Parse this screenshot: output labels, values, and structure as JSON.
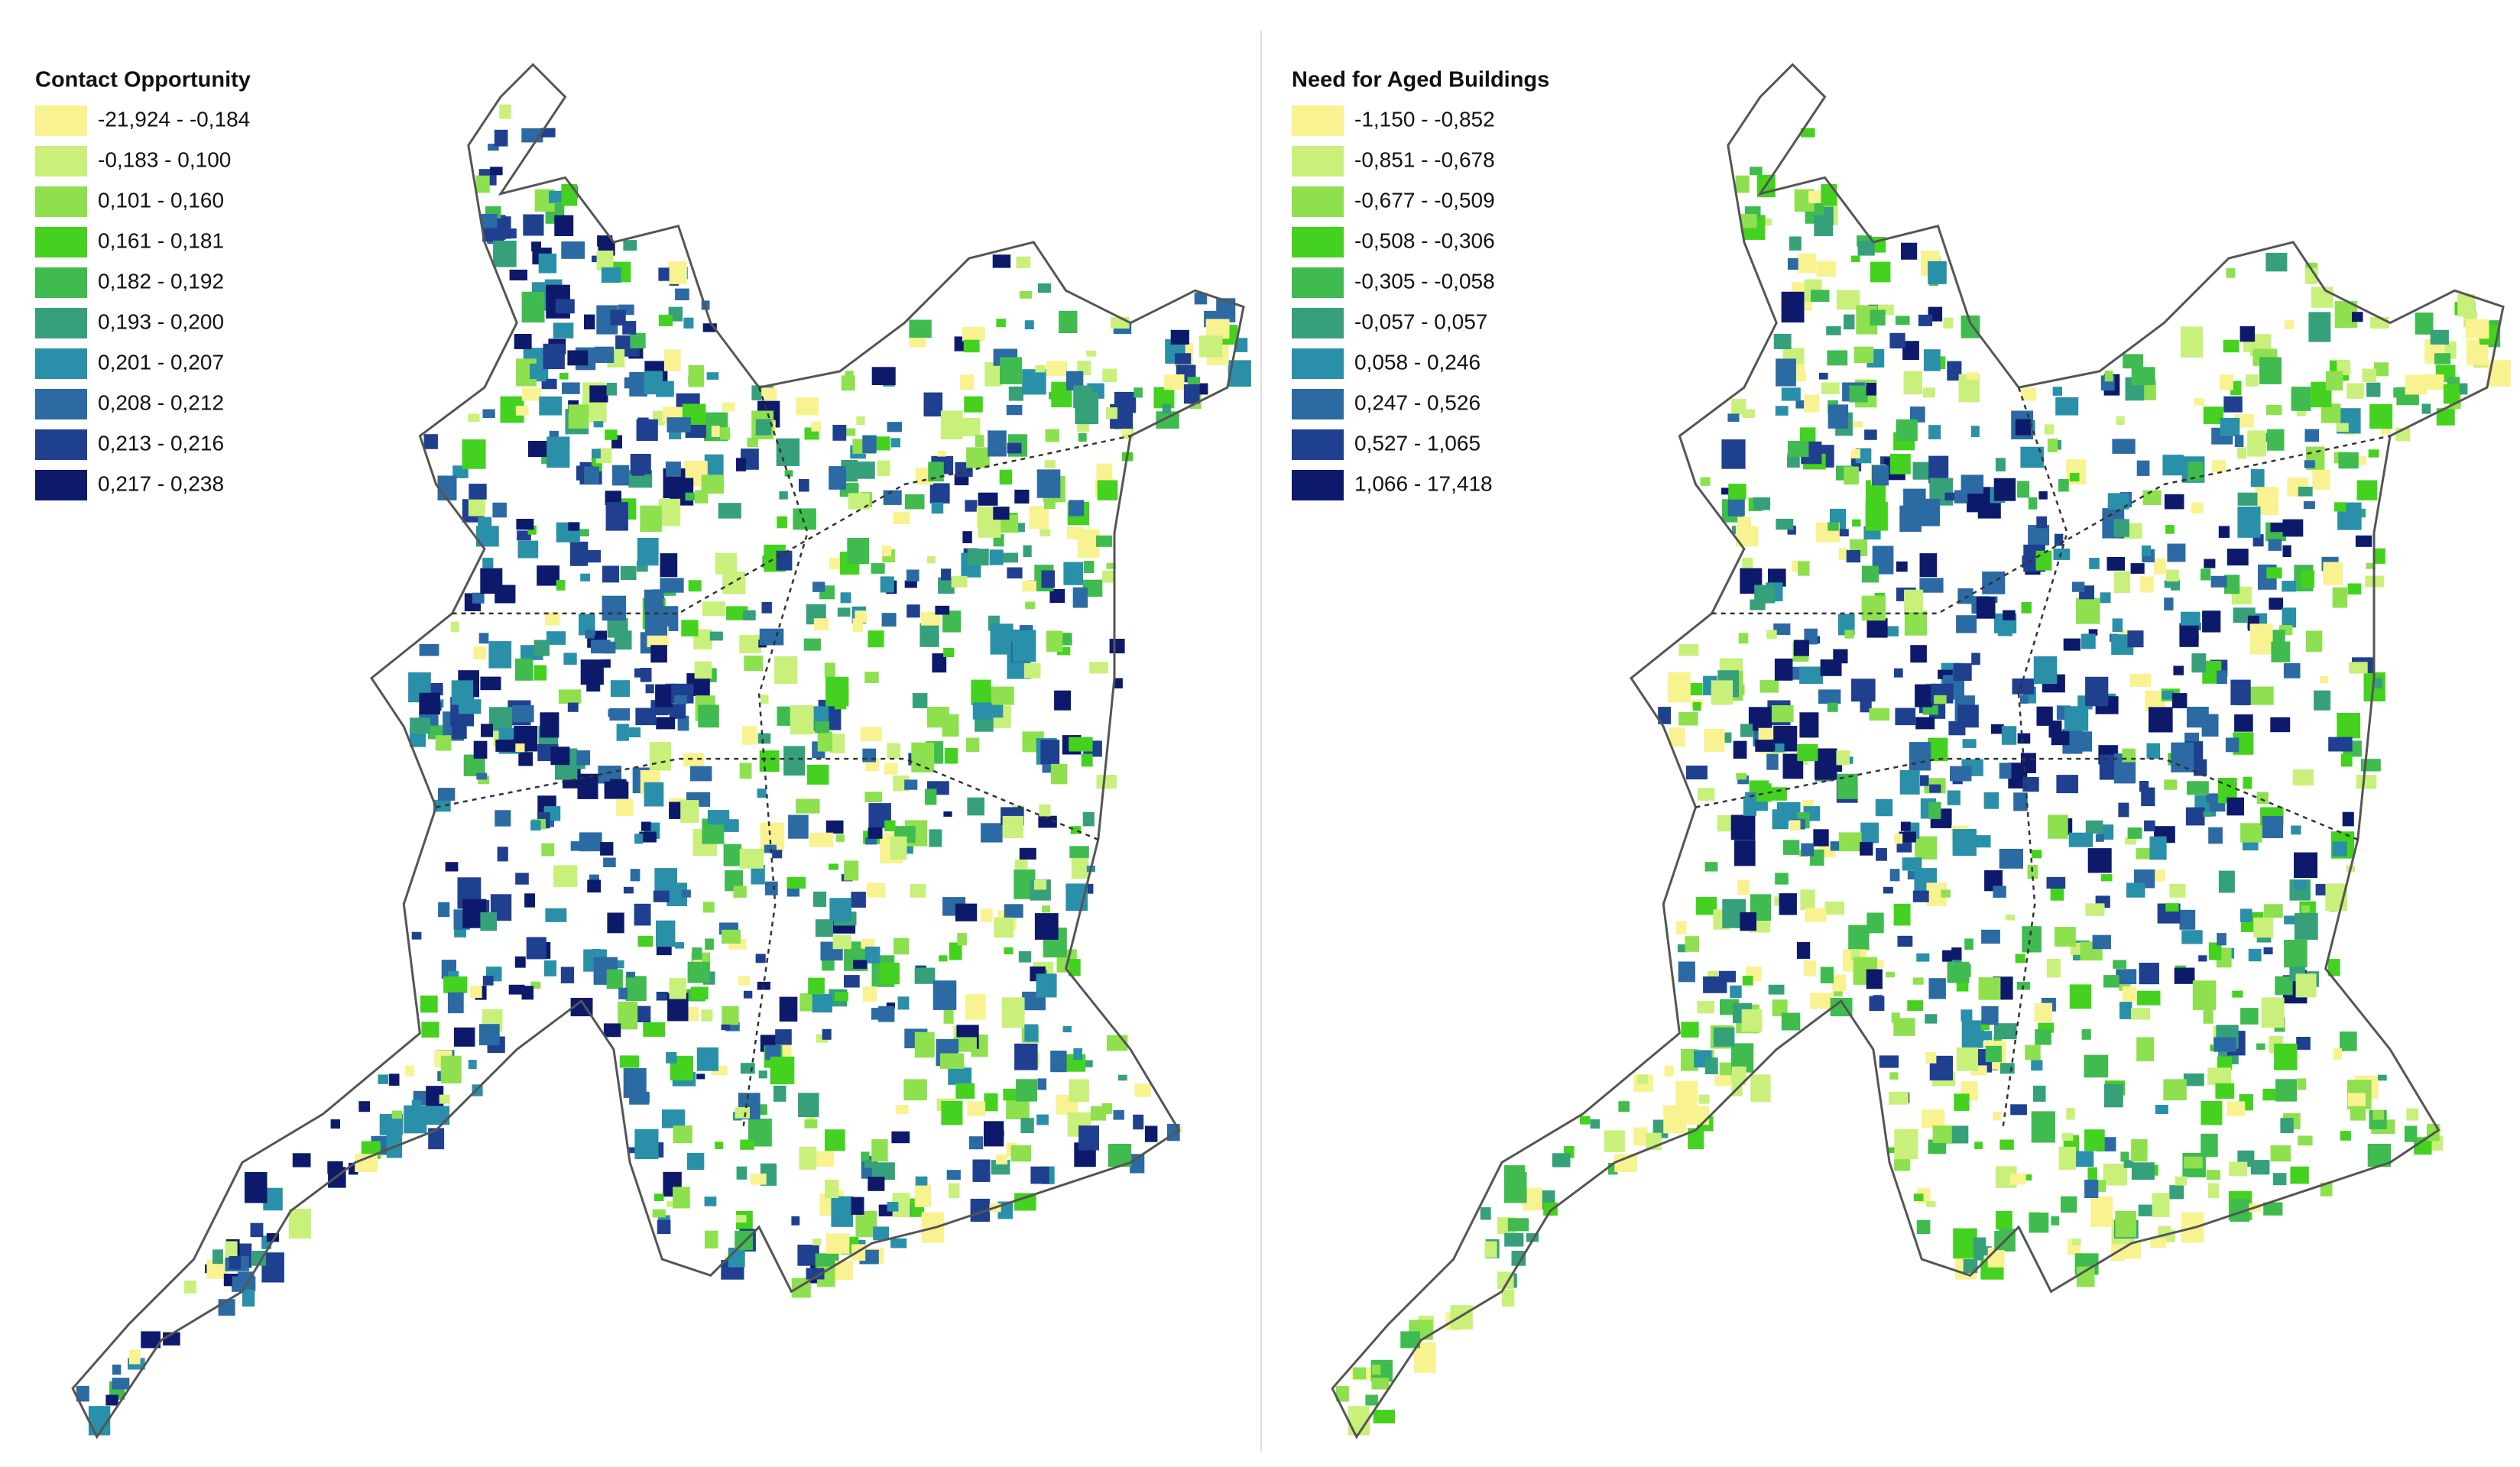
{
  "maps": [
    {
      "legend": {
        "title": "Contact Opportunity",
        "classes": [
          {
            "label": "-21,924 - -0,184",
            "color": "#f8f291"
          },
          {
            "label": "-0,183 - 0,100",
            "color": "#c8f07a"
          },
          {
            "label": "0,101 - 0,160",
            "color": "#8ee04e"
          },
          {
            "label": "0,161 - 0,181",
            "color": "#45d11f"
          },
          {
            "label": "0,182 - 0,192",
            "color": "#3fbb4f"
          },
          {
            "label": "0,193 - 0,200",
            "color": "#35a07a"
          },
          {
            "label": "0,201 - 0,207",
            "color": "#2a8fa8"
          },
          {
            "label": "0,208 - 0,212",
            "color": "#2b6aa3"
          },
          {
            "label": "0,213 - 0,216",
            "color": "#1f3f8f"
          },
          {
            "label": "0,217 - 0,238",
            "color": "#0d1a6b"
          }
        ]
      }
    },
    {
      "legend": {
        "title": "Need for Aged Buildings",
        "classes": [
          {
            "label": "-1,150 - -0,852",
            "color": "#f8f291"
          },
          {
            "label": "-0,851 - -0,678",
            "color": "#c8f07a"
          },
          {
            "label": "-0,677 - -0,509",
            "color": "#8ee04e"
          },
          {
            "label": "-0,508 - -0,306",
            "color": "#45d11f"
          },
          {
            "label": "-0,305 - -0,058",
            "color": "#3fbb4f"
          },
          {
            "label": "-0,057 - 0,057",
            "color": "#35a07a"
          },
          {
            "label": "0,058 - 0,246",
            "color": "#2a8fa8"
          },
          {
            "label": "0,247 - 0,526",
            "color": "#2b6aa3"
          },
          {
            "label": "0,527 - 1,065",
            "color": "#1f3f8f"
          },
          {
            "label": "1,066 - 17,418",
            "color": "#0d1a6b"
          }
        ]
      }
    }
  ]
}
